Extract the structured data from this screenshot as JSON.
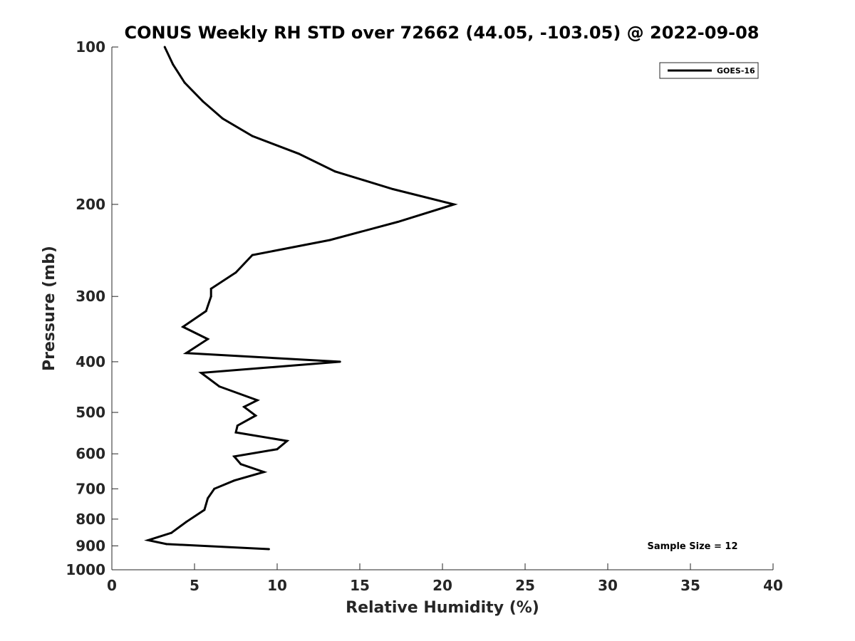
{
  "chart_data": {
    "type": "line",
    "title": "CONUS Weekly RH STD over 72662 (44.05, -103.05) @ 2022-09-08",
    "xlabel": "Relative Humidity (%)",
    "ylabel": "Pressure (mb)",
    "xlim": [
      0,
      40
    ],
    "ylim": [
      100,
      1000
    ],
    "y_scale": "log",
    "y_direction": "reversed",
    "x_ticks": [
      0,
      5,
      10,
      15,
      20,
      25,
      30,
      35,
      40
    ],
    "y_ticks": [
      100,
      200,
      300,
      400,
      500,
      600,
      700,
      800,
      900,
      1000
    ],
    "grid": false,
    "legend_position": "top-right",
    "annotation": "Sample Size = 12",
    "series": [
      {
        "name": "GOES-16",
        "color": "#000000",
        "points": [
          [
            3.2,
            100
          ],
          [
            3.7,
            108
          ],
          [
            4.4,
            117
          ],
          [
            5.5,
            127
          ],
          [
            6.7,
            137
          ],
          [
            8.5,
            148
          ],
          [
            11.3,
            160
          ],
          [
            13.5,
            173
          ],
          [
            17.0,
            187
          ],
          [
            20.7,
            200
          ],
          [
            17.3,
            216
          ],
          [
            13.2,
            234
          ],
          [
            8.5,
            250
          ],
          [
            7.5,
            270
          ],
          [
            6.0,
            290
          ],
          [
            6.0,
            300
          ],
          [
            5.7,
            320
          ],
          [
            4.3,
            343
          ],
          [
            5.8,
            362
          ],
          [
            4.5,
            385
          ],
          [
            13.8,
            400
          ],
          [
            5.4,
            420
          ],
          [
            6.5,
            446
          ],
          [
            8.8,
            474
          ],
          [
            8.0,
            488
          ],
          [
            8.7,
            507
          ],
          [
            7.6,
            530
          ],
          [
            7.5,
            546
          ],
          [
            10.6,
            567
          ],
          [
            10.0,
            588
          ],
          [
            7.4,
            607
          ],
          [
            7.8,
            628
          ],
          [
            9.2,
            650
          ],
          [
            7.4,
            675
          ],
          [
            6.2,
            700
          ],
          [
            5.8,
            730
          ],
          [
            5.6,
            768
          ],
          [
            4.5,
            810
          ],
          [
            3.6,
            850
          ],
          [
            2.2,
            878
          ],
          [
            3.3,
            893
          ],
          [
            9.5,
            913
          ]
        ]
      }
    ]
  }
}
